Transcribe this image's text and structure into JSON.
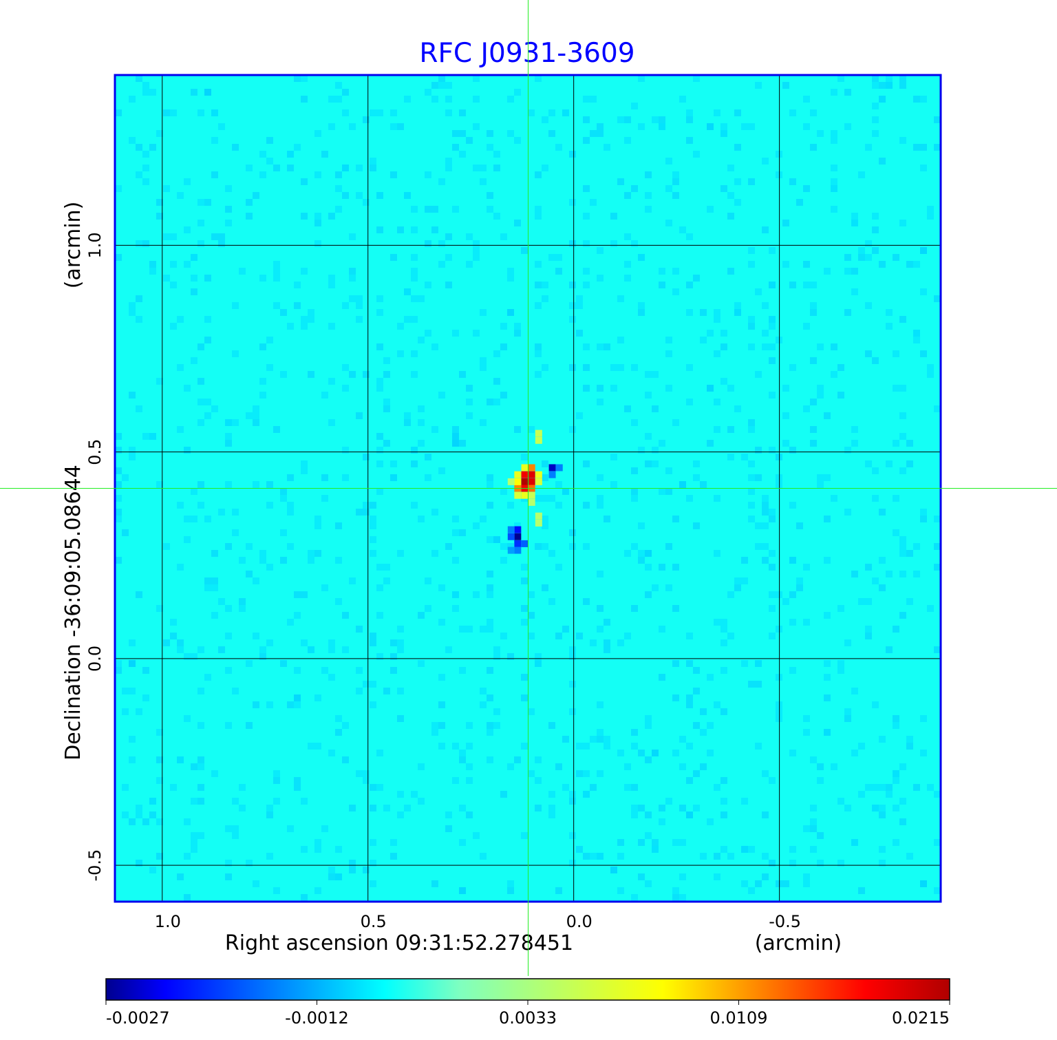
{
  "chart_data": {
    "type": "heatmap",
    "title": "RFC J0931-3609",
    "xlabel": "Right ascension  09:31:52.278451",
    "xunit": "(arcmin)",
    "ylabel": "Declination  -36:09:05.08644",
    "yunit": "(arcmin)",
    "x_ticks": [
      {
        "value": 1.0,
        "label": "1.0"
      },
      {
        "value": 0.5,
        "label": "0.5"
      },
      {
        "value": 0.0,
        "label": "0.0"
      },
      {
        "value": -0.5,
        "label": "-0.5"
      }
    ],
    "y_ticks": [
      {
        "value": 1.0,
        "label": "1.0"
      },
      {
        "value": 0.5,
        "label": "0.5"
      },
      {
        "value": 0.0,
        "label": "0.0"
      },
      {
        "value": -0.5,
        "label": "-0.5"
      }
    ],
    "xlim": [
      1.115,
      -0.892
    ],
    "ylim": [
      -0.588,
      1.412
    ],
    "grid": true,
    "crosshair": {
      "ra_offset": 0.11,
      "dec_offset": 0.413
    },
    "colormap": "jet",
    "colorbar": {
      "range": [
        -0.0027,
        0.0215
      ],
      "ticks": [
        "-0.0027",
        "-0.0012",
        "0.0033",
        "0.0109",
        "0.0215"
      ]
    },
    "background_value": 0.0005,
    "source_pixels": [
      {
        "ra": 0.119,
        "dec": 0.428,
        "value": 0.0215
      },
      {
        "ra": 0.102,
        "dec": 0.445,
        "value": 0.019
      },
      {
        "ra": 0.102,
        "dec": 0.428,
        "value": 0.019
      },
      {
        "ra": 0.119,
        "dec": 0.445,
        "value": 0.018
      },
      {
        "ra": 0.119,
        "dec": 0.412,
        "value": 0.018
      },
      {
        "ra": 0.102,
        "dec": 0.412,
        "value": 0.013
      },
      {
        "ra": 0.102,
        "dec": 0.462,
        "value": 0.012
      },
      {
        "ra": 0.136,
        "dec": 0.412,
        "value": 0.012
      },
      {
        "ra": 0.136,
        "dec": 0.428,
        "value": 0.008
      },
      {
        "ra": 0.136,
        "dec": 0.445,
        "value": 0.007
      },
      {
        "ra": 0.119,
        "dec": 0.462,
        "value": 0.007
      },
      {
        "ra": 0.085,
        "dec": 0.445,
        "value": 0.007
      },
      {
        "ra": 0.085,
        "dec": 0.428,
        "value": 0.006
      },
      {
        "ra": 0.119,
        "dec": 0.395,
        "value": 0.007
      },
      {
        "ra": 0.136,
        "dec": 0.395,
        "value": 0.006
      },
      {
        "ra": 0.102,
        "dec": 0.395,
        "value": 0.005
      },
      {
        "ra": 0.152,
        "dec": 0.428,
        "value": 0.004
      },
      {
        "ra": 0.102,
        "dec": 0.378,
        "value": 0.004
      },
      {
        "ra": 0.085,
        "dec": 0.545,
        "value": 0.005
      },
      {
        "ra": 0.085,
        "dec": 0.528,
        "value": 0.005
      },
      {
        "ra": 0.085,
        "dec": 0.345,
        "value": 0.004
      },
      {
        "ra": 0.085,
        "dec": 0.328,
        "value": 0.004
      },
      {
        "ra": 0.052,
        "dec": 0.462,
        "value": -0.0025
      },
      {
        "ra": 0.052,
        "dec": 0.445,
        "value": -0.0015
      },
      {
        "ra": 0.035,
        "dec": 0.462,
        "value": -0.0015
      },
      {
        "ra": 0.136,
        "dec": 0.295,
        "value": -0.0027
      },
      {
        "ra": 0.136,
        "dec": 0.312,
        "value": -0.0022
      },
      {
        "ra": 0.152,
        "dec": 0.295,
        "value": -0.0018
      },
      {
        "ra": 0.136,
        "dec": 0.278,
        "value": -0.002
      },
      {
        "ra": 0.119,
        "dec": 0.278,
        "value": -0.0017
      },
      {
        "ra": 0.152,
        "dec": 0.312,
        "value": -0.0015
      },
      {
        "ra": 0.136,
        "dec": 0.262,
        "value": -0.0015
      },
      {
        "ra": 0.152,
        "dec": 0.262,
        "value": -0.0013
      }
    ]
  }
}
